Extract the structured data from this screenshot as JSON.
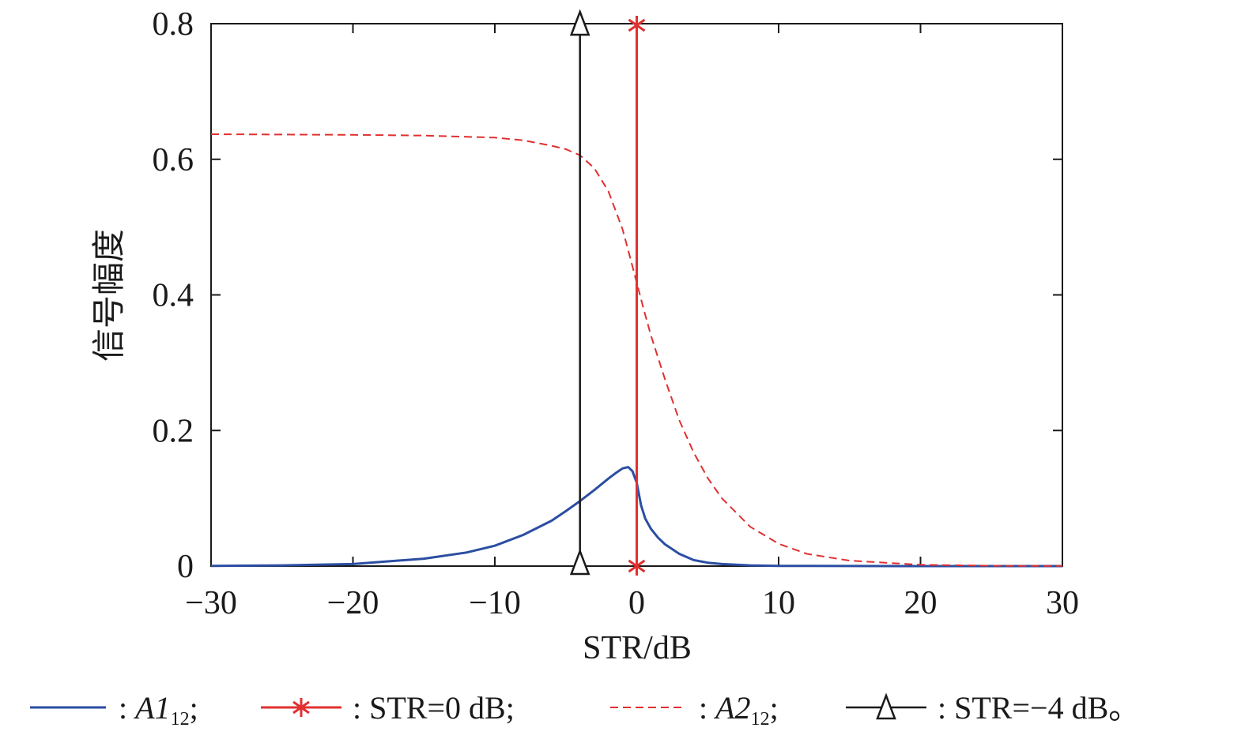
{
  "chart_data": {
    "type": "line",
    "xlabel": "STR/dB",
    "ylabel": "信号幅度",
    "xlim": [
      -30,
      30
    ],
    "ylim": [
      0,
      0.8
    ],
    "xticks": [
      -30,
      -20,
      -10,
      0,
      10,
      20,
      30
    ],
    "xtick_labels": [
      "−30",
      "−20",
      "−10",
      "0",
      "10",
      "20",
      "30"
    ],
    "yticks": [
      0,
      0.2,
      0.4,
      0.6,
      0.8
    ],
    "ytick_labels": [
      "0",
      "0.2",
      "0.4",
      "0.6",
      "0.8"
    ],
    "grid": false,
    "series": [
      {
        "name": "A1_12",
        "style": "solid",
        "color": "#2b4ea2",
        "x": [
          -30,
          -25,
          -20,
          -15,
          -12,
          -10,
          -8,
          -6,
          -5,
          -4,
          -3,
          -2,
          -1.5,
          -1,
          -0.6,
          -0.3,
          0,
          0.3,
          0.6,
          1,
          1.5,
          2,
          3,
          4,
          5,
          6,
          8,
          10,
          12,
          15,
          20,
          30
        ],
        "y": [
          0.0003,
          0.001,
          0.003,
          0.011,
          0.02,
          0.03,
          0.046,
          0.067,
          0.081,
          0.096,
          0.112,
          0.129,
          0.137,
          0.144,
          0.146,
          0.14,
          0.123,
          0.09,
          0.07,
          0.055,
          0.042,
          0.032,
          0.018,
          0.009,
          0.005,
          0.003,
          0.001,
          0.0004,
          0.0002,
          0.0001,
          0.0,
          0.0
        ]
      },
      {
        "name": "A2_12",
        "style": "dashed",
        "color": "#e03030",
        "x": [
          -30,
          -20,
          -15,
          -10,
          -8,
          -6,
          -5,
          -4,
          -3,
          -2,
          -1,
          -0.5,
          0,
          0.5,
          1,
          2,
          3,
          4,
          5,
          6,
          8,
          10,
          12,
          15,
          20,
          25,
          30
        ],
        "y": [
          0.637,
          0.636,
          0.635,
          0.632,
          0.628,
          0.62,
          0.615,
          0.606,
          0.587,
          0.553,
          0.497,
          0.458,
          0.418,
          0.378,
          0.34,
          0.275,
          0.215,
          0.168,
          0.13,
          0.1,
          0.058,
          0.033,
          0.018,
          0.008,
          0.002,
          0.0005,
          0.0001
        ]
      }
    ],
    "markers": [
      {
        "name": "STR=0 dB",
        "x": 0,
        "marker": "asterisk",
        "color": "#e03030"
      },
      {
        "name": "STR=−4 dB",
        "x": -4,
        "marker": "triangle",
        "color": "#1a1a1a"
      }
    ],
    "legend": {
      "placement": "bottom",
      "items": [
        {
          "label_prefix": ": ",
          "label_main": "A1",
          "label_sub": "12",
          "label_suffix": ";"
        },
        {
          "label_prefix": ": ",
          "label_main": "STR=0 dB",
          "label_sub": "",
          "label_suffix": ";"
        },
        {
          "label_prefix": ": ",
          "label_main": "A2",
          "label_sub": "12",
          "label_suffix": ";"
        },
        {
          "label_prefix": ": ",
          "label_main": "STR=−4 dB",
          "label_sub": "",
          "label_suffix": "。"
        }
      ]
    }
  }
}
